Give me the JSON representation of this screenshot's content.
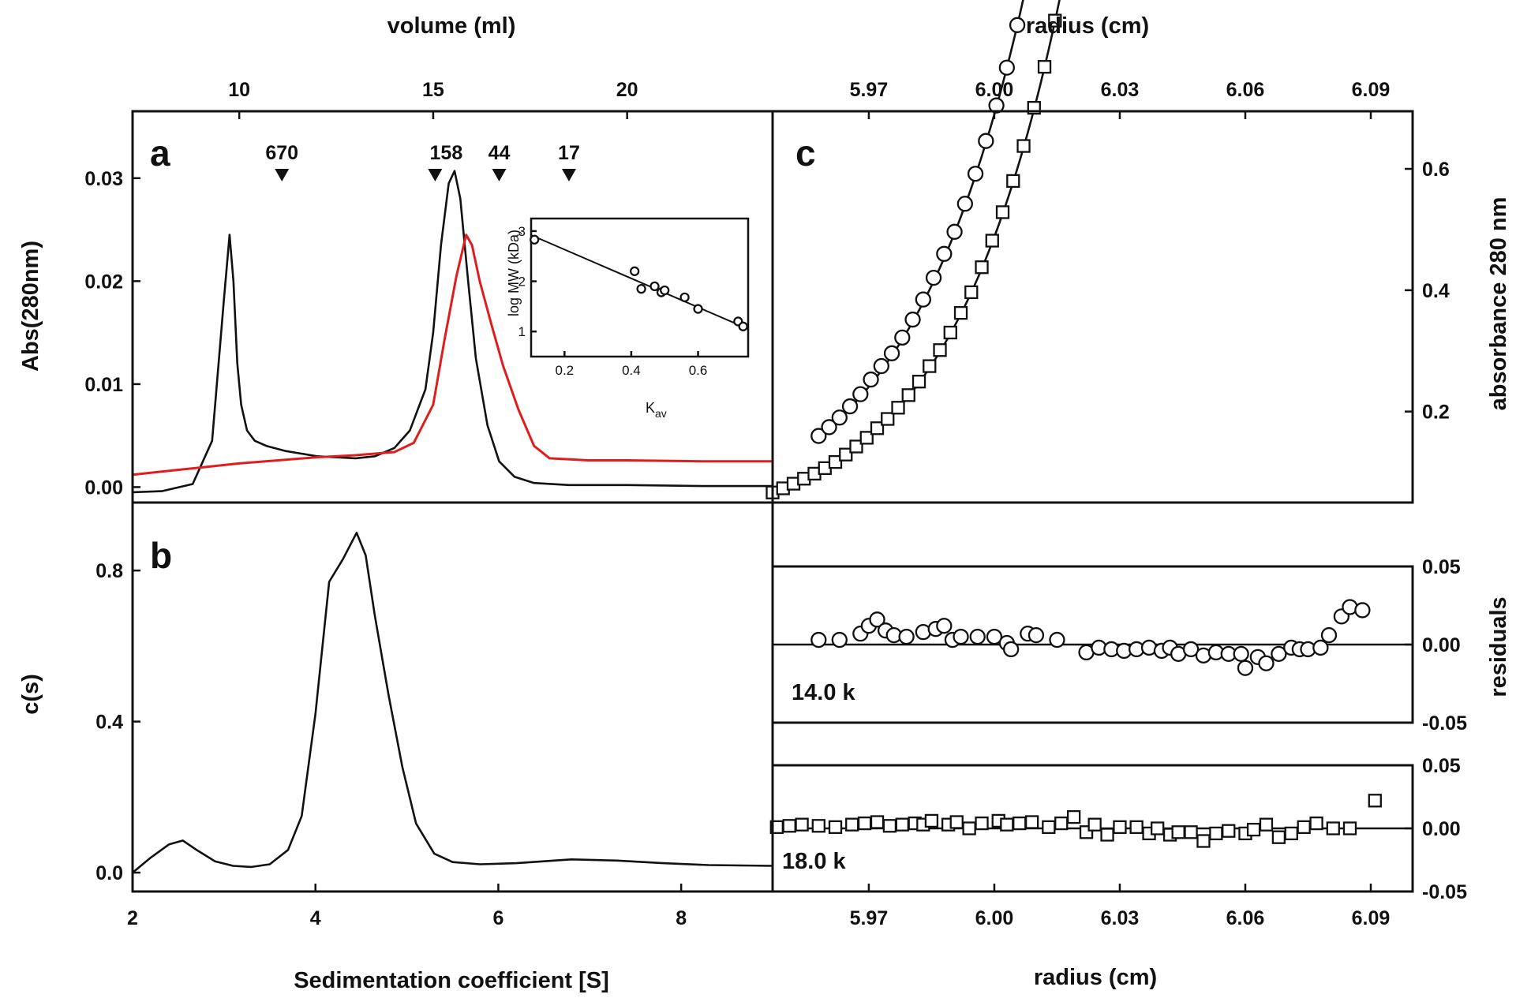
{
  "chart_data": [
    {
      "panel": "a",
      "type": "line",
      "xlabel_top": "volume (ml)",
      "ylabel": "Abs(280nm)",
      "xlim": [
        7.25,
        23.75
      ],
      "ylim": [
        -0.0015,
        0.0365
      ],
      "x_ticks": [
        "10",
        "15",
        "20"
      ],
      "x_tick_values": [
        10,
        15,
        20
      ],
      "y_ticks": [
        "0.00",
        "0.01",
        "0.02",
        "0.03"
      ],
      "y_tick_values": [
        0,
        0.01,
        0.02,
        0.03
      ],
      "markers": [
        {
          "label": "670",
          "x": 11.1
        },
        {
          "label": "158",
          "x": 15.05
        },
        {
          "label": "44",
          "x": 16.7
        },
        {
          "label": "17",
          "x": 18.5
        }
      ],
      "series": [
        {
          "color": "#111111",
          "x": [
            7.25,
            8.0,
            8.8,
            9.3,
            9.6,
            9.75,
            9.85,
            9.95,
            10.05,
            10.2,
            10.4,
            10.7,
            11.2,
            12.0,
            13.0,
            13.5,
            14.0,
            14.4,
            14.8,
            15.0,
            15.2,
            15.4,
            15.55,
            15.7,
            15.9,
            16.1,
            16.4,
            16.7,
            17.1,
            17.6,
            18.5,
            20.0,
            22.0,
            23.75
          ],
          "y": [
            -0.0005,
            -0.0004,
            0.0003,
            0.0045,
            0.018,
            0.0245,
            0.02,
            0.012,
            0.008,
            0.0055,
            0.0045,
            0.004,
            0.0035,
            0.003,
            0.0028,
            0.003,
            0.0038,
            0.0055,
            0.0095,
            0.015,
            0.0235,
            0.0295,
            0.0307,
            0.028,
            0.02,
            0.0125,
            0.006,
            0.0025,
            0.001,
            0.0004,
            0.0002,
            0.0002,
            0.0001,
            0.0001
          ]
        },
        {
          "color": "#e01d1d",
          "x": [
            7.25,
            8.0,
            9.0,
            10.0,
            11.0,
            12.0,
            13.0,
            14.0,
            14.5,
            15.0,
            15.3,
            15.6,
            15.85,
            16.0,
            16.2,
            16.5,
            16.8,
            17.2,
            17.6,
            18.0,
            19.0,
            20.0,
            22.0,
            23.75
          ],
          "y": [
            0.0012,
            0.0015,
            0.0019,
            0.0023,
            0.0026,
            0.0029,
            0.0031,
            0.0034,
            0.0043,
            0.008,
            0.0145,
            0.0205,
            0.0245,
            0.0235,
            0.02,
            0.0158,
            0.0118,
            0.0075,
            0.004,
            0.0028,
            0.0026,
            0.0026,
            0.0025,
            0.0025
          ]
        }
      ]
    },
    {
      "panel": "a-inset",
      "type": "scatter",
      "xlabel": "K",
      "xlabel_sub": "av",
      "ylabel": "log MW (kDa)",
      "xlim": [
        0.1,
        0.75
      ],
      "ylim": [
        0.5,
        3.25
      ],
      "x_ticks": [
        "0.2",
        "0.4",
        "0.6"
      ],
      "x_tick_values": [
        0.2,
        0.4,
        0.6
      ],
      "y_ticks": [
        "1",
        "2",
        "3"
      ],
      "y_tick_values": [
        1,
        2,
        3
      ],
      "points": {
        "x": [
          0.11,
          0.41,
          0.43,
          0.47,
          0.49,
          0.5,
          0.56,
          0.6,
          0.72,
          0.735
        ],
        "y": [
          2.83,
          2.2,
          1.85,
          1.9,
          1.78,
          1.82,
          1.68,
          1.45,
          1.2,
          1.1
        ]
      },
      "fit": {
        "x": [
          0.1,
          0.74
        ],
        "y": [
          2.92,
          1.08
        ]
      }
    },
    {
      "panel": "b",
      "type": "line",
      "xlabel": "Sedimentation coefficient [S]",
      "ylabel": "c(s)",
      "xlim": [
        2,
        9
      ],
      "ylim": [
        -0.05,
        0.98
      ],
      "x_ticks": [
        "2",
        "4",
        "6",
        "8"
      ],
      "x_tick_values": [
        2,
        4,
        6,
        8
      ],
      "y_ticks": [
        "0.0",
        "0.4",
        "0.8"
      ],
      "y_tick_values": [
        0,
        0.4,
        0.8
      ],
      "series": [
        {
          "color": "#111111",
          "x": [
            2.0,
            2.2,
            2.4,
            2.55,
            2.7,
            2.9,
            3.1,
            3.3,
            3.5,
            3.7,
            3.85,
            4.0,
            4.15,
            4.3,
            4.45,
            4.55,
            4.65,
            4.8,
            4.95,
            5.1,
            5.3,
            5.5,
            5.8,
            6.2,
            6.8,
            7.3,
            7.8,
            8.3,
            9.0
          ],
          "y": [
            0.0,
            0.04,
            0.075,
            0.085,
            0.06,
            0.03,
            0.018,
            0.015,
            0.022,
            0.06,
            0.15,
            0.42,
            0.77,
            0.83,
            0.9,
            0.84,
            0.68,
            0.47,
            0.28,
            0.13,
            0.05,
            0.028,
            0.022,
            0.025,
            0.035,
            0.032,
            0.025,
            0.02,
            0.018
          ]
        }
      ]
    },
    {
      "panel": "c",
      "type": "scatter",
      "xlabel_top": "radius (cm)",
      "ylabel": "absorbance 280 nm",
      "xlim": [
        5.947,
        6.1
      ],
      "ylim": [
        0.05,
        0.695
      ],
      "x_ticks": [
        "5.97",
        "6.00",
        "6.03",
        "6.06",
        "6.09"
      ],
      "x_tick_values": [
        5.97,
        6.0,
        6.03,
        6.06,
        6.09
      ],
      "y_ticks": [
        "0.2",
        "0.4",
        "0.6"
      ],
      "y_tick_values": [
        0.2,
        0.4,
        0.6
      ],
      "series": [
        {
          "name": "14.0 k",
          "marker": "circle",
          "fit": "exponential",
          "x0": 5.958,
          "x1": 6.09,
          "a": 0.158,
          "b": 0.0285,
          "x_start": 5.958,
          "x_end": 6.089,
          "step": 0.0025
        },
        {
          "name": "18.0 k",
          "marker": "square",
          "fit": "exponential",
          "x0": 5.947,
          "x1": 6.091,
          "a": 0.066,
          "b": 0.0265,
          "x_start": 5.947,
          "x_end": 6.091,
          "step": 0.0025
        }
      ]
    },
    {
      "panel": "c-residuals-14k",
      "type": "scatter",
      "label": "14.0 k",
      "xlim": [
        5.947,
        6.1
      ],
      "ylim": [
        -0.05,
        0.05
      ],
      "y_ticks": [
        "0.05",
        "0.00",
        "-0.05"
      ],
      "y_tick_values": [
        0.05,
        0,
        -0.05
      ],
      "marker": "circle",
      "x": [
        5.958,
        5.963,
        5.968,
        5.97,
        5.972,
        5.974,
        5.976,
        5.979,
        5.983,
        5.986,
        5.988,
        5.99,
        5.992,
        5.996,
        6.0,
        6.003,
        6.004,
        6.008,
        6.01,
        6.015,
        6.022,
        6.025,
        6.028,
        6.031,
        6.034,
        6.037,
        6.04,
        6.042,
        6.044,
        6.047,
        6.05,
        6.053,
        6.056,
        6.059,
        6.06,
        6.063,
        6.065,
        6.068,
        6.071,
        6.073,
        6.075,
        6.078,
        6.08,
        6.083,
        6.085,
        6.088
      ],
      "y": [
        0.003,
        0.003,
        0.007,
        0.012,
        0.016,
        0.009,
        0.006,
        0.005,
        0.008,
        0.01,
        0.012,
        0.003,
        0.005,
        0.005,
        0.005,
        0.001,
        -0.003,
        0.007,
        0.006,
        0.003,
        -0.005,
        -0.002,
        -0.003,
        -0.004,
        -0.003,
        -0.002,
        -0.004,
        -0.002,
        -0.006,
        -0.003,
        -0.007,
        -0.005,
        -0.006,
        -0.006,
        -0.015,
        -0.008,
        -0.012,
        -0.006,
        -0.002,
        -0.003,
        -0.003,
        -0.002,
        0.006,
        0.018,
        0.024,
        0.022
      ]
    },
    {
      "panel": "c-residuals-18k",
      "type": "scatter",
      "label": "18.0 k",
      "xlabel": "radius (cm)",
      "ylabel": "residuals",
      "xlim": [
        5.947,
        6.1
      ],
      "ylim": [
        -0.05,
        0.05
      ],
      "x_ticks": [
        "5.97",
        "6.00",
        "6.03",
        "6.06",
        "6.09"
      ],
      "x_tick_values": [
        5.97,
        6.0,
        6.03,
        6.06,
        6.09
      ],
      "y_ticks": [
        "0.05",
        "0.00",
        "-0.05"
      ],
      "y_tick_values": [
        0.05,
        0,
        -0.05
      ],
      "marker": "square",
      "x": [
        5.948,
        5.951,
        5.954,
        5.958,
        5.962,
        5.966,
        5.969,
        5.972,
        5.975,
        5.978,
        5.981,
        5.983,
        5.985,
        5.989,
        5.991,
        5.994,
        5.997,
        6.001,
        6.003,
        6.006,
        6.009,
        6.013,
        6.016,
        6.019,
        6.022,
        6.024,
        6.027,
        6.03,
        6.034,
        6.037,
        6.039,
        6.042,
        6.044,
        6.047,
        6.05,
        6.053,
        6.056,
        6.06,
        6.062,
        6.065,
        6.068,
        6.071,
        6.074,
        6.077,
        6.081,
        6.085,
        6.091
      ],
      "y": [
        0.001,
        0.002,
        0.003,
        0.002,
        0.001,
        0.003,
        0.004,
        0.005,
        0.002,
        0.003,
        0.004,
        0.003,
        0.006,
        0.003,
        0.005,
        0.0,
        0.004,
        0.006,
        0.003,
        0.004,
        0.005,
        0.001,
        0.004,
        0.009,
        -0.003,
        0.003,
        -0.005,
        0.001,
        0.001,
        -0.004,
        0.0,
        -0.005,
        -0.003,
        -0.003,
        -0.01,
        -0.004,
        -0.002,
        -0.004,
        -0.001,
        0.003,
        -0.007,
        -0.004,
        0.001,
        0.004,
        0.0,
        0.0,
        0.022
      ]
    }
  ]
}
